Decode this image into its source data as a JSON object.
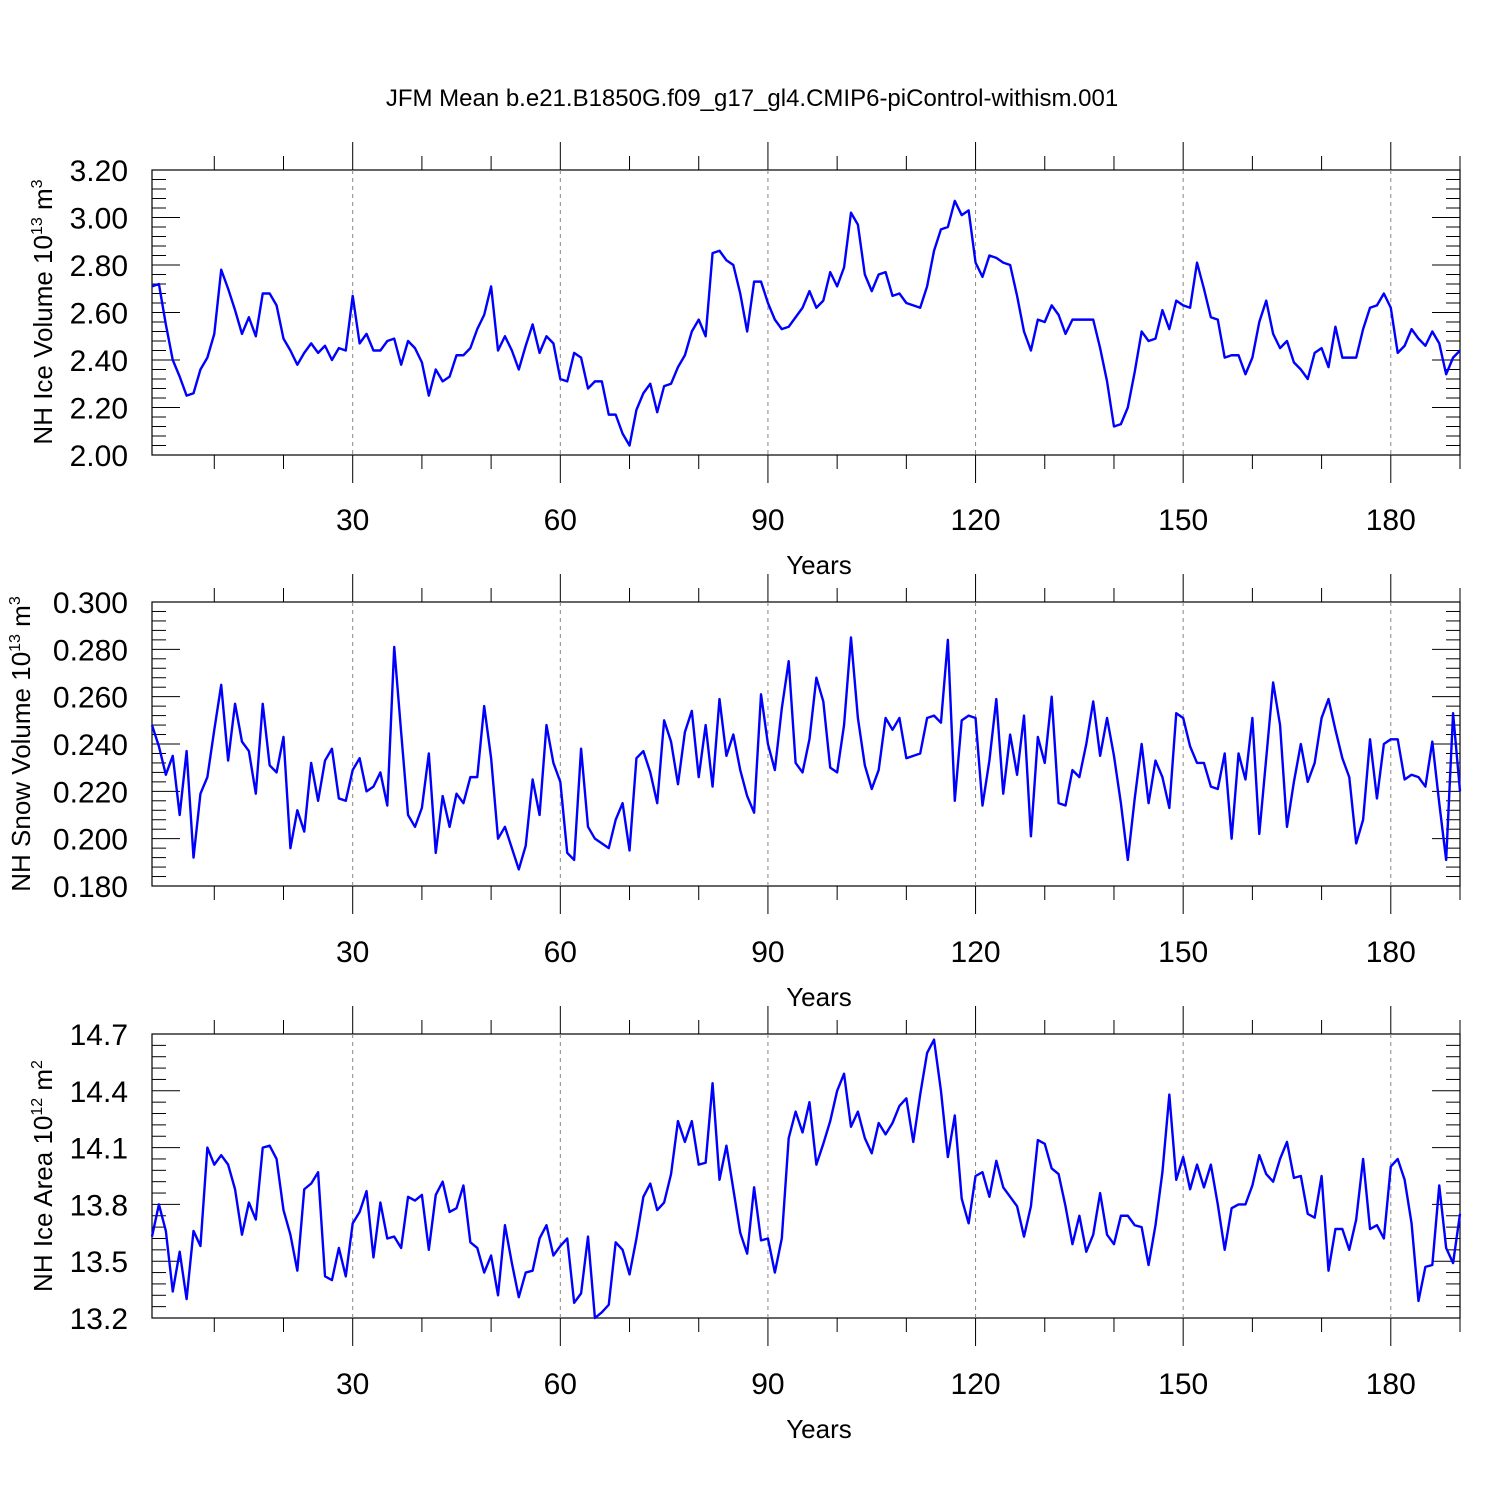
{
  "title": "JFM Mean b.e21.B1850G.f09_g17_gl4.CMIP6-piControl-withism.001",
  "colors": {
    "line": "#0000ff",
    "axis": "#000000",
    "grid": "#888888"
  },
  "chart_data": [
    {
      "type": "line",
      "ylabel_main": "NH Ice Volume 10",
      "ylabel_exp": "13",
      "ylabel_unit": " m",
      "ylabel_unit_exp": "3",
      "xlabel": "Years",
      "xlim": [
        1,
        190
      ],
      "ylim": [
        2.0,
        3.2
      ],
      "yticks": [
        "2.00",
        "2.20",
        "2.40",
        "2.60",
        "2.80",
        "3.00",
        "3.20"
      ],
      "xticks": [
        "30",
        "60",
        "90",
        "120",
        "150",
        "180"
      ],
      "values": [
        2.71,
        2.72,
        2.55,
        2.4,
        2.33,
        2.25,
        2.26,
        2.36,
        2.41,
        2.51,
        2.78,
        2.7,
        2.61,
        2.51,
        2.58,
        2.5,
        2.68,
        2.68,
        2.63,
        2.49,
        2.44,
        2.38,
        2.43,
        2.47,
        2.43,
        2.46,
        2.4,
        2.45,
        2.44,
        2.67,
        2.47,
        2.51,
        2.44,
        2.44,
        2.48,
        2.49,
        2.38,
        2.48,
        2.45,
        2.39,
        2.25,
        2.36,
        2.31,
        2.33,
        2.42,
        2.42,
        2.45,
        2.53,
        2.59,
        2.71,
        2.44,
        2.5,
        2.44,
        2.36,
        2.46,
        2.55,
        2.43,
        2.5,
        2.47,
        2.32,
        2.31,
        2.43,
        2.41,
        2.28,
        2.31,
        2.31,
        2.17,
        2.17,
        2.09,
        2.04,
        2.19,
        2.26,
        2.3,
        2.18,
        2.29,
        2.3,
        2.37,
        2.42,
        2.52,
        2.57,
        2.5,
        2.85,
        2.86,
        2.82,
        2.8,
        2.68,
        2.52,
        2.73,
        2.73,
        2.64,
        2.57,
        2.53,
        2.54,
        2.58,
        2.62,
        2.69,
        2.62,
        2.65,
        2.77,
        2.71,
        2.79,
        3.02,
        2.97,
        2.76,
        2.69,
        2.76,
        2.77,
        2.67,
        2.68,
        2.64,
        2.63,
        2.62,
        2.71,
        2.86,
        2.95,
        2.96,
        3.07,
        3.01,
        3.03,
        2.81,
        2.75,
        2.84,
        2.83,
        2.81,
        2.8,
        2.67,
        2.52,
        2.44,
        2.57,
        2.56,
        2.63,
        2.59,
        2.51,
        2.57,
        2.57,
        2.57,
        2.57,
        2.45,
        2.31,
        2.12,
        2.13,
        2.2,
        2.35,
        2.52,
        2.48,
        2.49,
        2.61,
        2.53,
        2.65,
        2.63,
        2.62,
        2.81,
        2.7,
        2.58,
        2.57,
        2.41,
        2.42,
        2.42,
        2.34,
        2.41,
        2.56,
        2.65,
        2.51,
        2.45,
        2.48,
        2.39,
        2.36,
        2.32,
        2.43,
        2.45,
        2.37,
        2.54,
        2.41,
        2.41,
        2.41,
        2.53,
        2.62,
        2.63,
        2.68,
        2.62,
        2.43,
        2.46,
        2.53,
        2.49,
        2.46,
        2.52,
        2.47,
        2.34,
        2.41,
        2.44
      ]
    },
    {
      "type": "line",
      "ylabel_main": "NH Snow Volume 10",
      "ylabel_exp": "13",
      "ylabel_unit": " m",
      "ylabel_unit_exp": "3",
      "xlabel": "Years",
      "xlim": [
        1,
        190
      ],
      "ylim": [
        0.18,
        0.3
      ],
      "yticks": [
        "0.180",
        "0.200",
        "0.220",
        "0.240",
        "0.260",
        "0.280",
        "0.300"
      ],
      "xticks": [
        "30",
        "60",
        "90",
        "120",
        "150",
        "180"
      ],
      "values": [
        0.248,
        0.239,
        0.227,
        0.235,
        0.21,
        0.237,
        0.192,
        0.219,
        0.226,
        0.246,
        0.265,
        0.233,
        0.257,
        0.241,
        0.237,
        0.219,
        0.257,
        0.231,
        0.228,
        0.243,
        0.196,
        0.212,
        0.203,
        0.232,
        0.216,
        0.233,
        0.238,
        0.217,
        0.216,
        0.229,
        0.234,
        0.22,
        0.222,
        0.228,
        0.214,
        0.281,
        0.245,
        0.21,
        0.205,
        0.213,
        0.236,
        0.194,
        0.218,
        0.205,
        0.219,
        0.215,
        0.226,
        0.226,
        0.256,
        0.234,
        0.2,
        0.205,
        0.196,
        0.187,
        0.197,
        0.225,
        0.21,
        0.248,
        0.232,
        0.224,
        0.194,
        0.191,
        0.238,
        0.205,
        0.2,
        0.198,
        0.196,
        0.208,
        0.215,
        0.195,
        0.234,
        0.237,
        0.228,
        0.215,
        0.25,
        0.241,
        0.223,
        0.245,
        0.254,
        0.226,
        0.248,
        0.222,
        0.259,
        0.235,
        0.244,
        0.229,
        0.218,
        0.211,
        0.261,
        0.24,
        0.229,
        0.255,
        0.275,
        0.232,
        0.228,
        0.242,
        0.268,
        0.258,
        0.23,
        0.228,
        0.248,
        0.285,
        0.251,
        0.231,
        0.221,
        0.229,
        0.251,
        0.246,
        0.251,
        0.234,
        0.235,
        0.236,
        0.251,
        0.252,
        0.249,
        0.284,
        0.216,
        0.25,
        0.252,
        0.251,
        0.214,
        0.233,
        0.259,
        0.219,
        0.244,
        0.227,
        0.252,
        0.201,
        0.243,
        0.232,
        0.26,
        0.215,
        0.214,
        0.229,
        0.226,
        0.24,
        0.258,
        0.235,
        0.251,
        0.235,
        0.215,
        0.191,
        0.217,
        0.24,
        0.215,
        0.233,
        0.226,
        0.213,
        0.253,
        0.251,
        0.239,
        0.232,
        0.232,
        0.222,
        0.221,
        0.236,
        0.2,
        0.236,
        0.225,
        0.251,
        0.202,
        0.234,
        0.266,
        0.248,
        0.205,
        0.224,
        0.24,
        0.224,
        0.232,
        0.251,
        0.259,
        0.246,
        0.234,
        0.226,
        0.198,
        0.208,
        0.242,
        0.217,
        0.24,
        0.242,
        0.242,
        0.225,
        0.227,
        0.226,
        0.222,
        0.241,
        0.215,
        0.191,
        0.253,
        0.22
      ]
    },
    {
      "type": "line",
      "ylabel_main": "NH Ice Area 10",
      "ylabel_exp": "12",
      "ylabel_unit": " m",
      "ylabel_unit_exp": "2",
      "xlabel": "Years",
      "xlim": [
        1,
        190
      ],
      "ylim": [
        13.2,
        14.7
      ],
      "yticks": [
        "13.2",
        "13.5",
        "13.8",
        "14.1",
        "14.4",
        "14.7"
      ],
      "xticks": [
        "30",
        "60",
        "90",
        "120",
        "150",
        "180"
      ],
      "values": [
        13.63,
        13.8,
        13.66,
        13.34,
        13.55,
        13.3,
        13.66,
        13.58,
        14.1,
        14.01,
        14.06,
        14.01,
        13.88,
        13.64,
        13.81,
        13.72,
        14.1,
        14.11,
        14.04,
        13.77,
        13.64,
        13.45,
        13.88,
        13.91,
        13.97,
        13.42,
        13.4,
        13.57,
        13.42,
        13.7,
        13.76,
        13.87,
        13.52,
        13.81,
        13.62,
        13.63,
        13.57,
        13.84,
        13.82,
        13.85,
        13.56,
        13.85,
        13.92,
        13.76,
        13.78,
        13.9,
        13.6,
        13.57,
        13.44,
        13.53,
        13.32,
        13.69,
        13.49,
        13.31,
        13.44,
        13.45,
        13.62,
        13.69,
        13.53,
        13.58,
        13.62,
        13.28,
        13.33,
        13.63,
        13.2,
        13.23,
        13.27,
        13.6,
        13.56,
        13.43,
        13.62,
        13.84,
        13.91,
        13.77,
        13.81,
        13.96,
        14.24,
        14.13,
        14.24,
        14.01,
        14.02,
        14.44,
        13.93,
        14.11,
        13.88,
        13.65,
        13.54,
        13.89,
        13.61,
        13.62,
        13.44,
        13.62,
        14.15,
        14.29,
        14.18,
        14.34,
        14.01,
        14.12,
        14.24,
        14.4,
        14.49,
        14.21,
        14.29,
        14.15,
        14.07,
        14.23,
        14.17,
        14.23,
        14.32,
        14.36,
        14.13,
        14.38,
        14.6,
        14.67,
        14.4,
        14.05,
        14.27,
        13.83,
        13.7,
        13.95,
        13.97,
        13.84,
        14.03,
        13.89,
        13.84,
        13.79,
        13.63,
        13.79,
        14.14,
        14.12,
        13.99,
        13.96,
        13.79,
        13.59,
        13.74,
        13.55,
        13.64,
        13.86,
        13.64,
        13.59,
        13.74,
        13.74,
        13.69,
        13.68,
        13.48,
        13.69,
        13.97,
        14.38,
        13.93,
        14.05,
        13.88,
        14.01,
        13.89,
        14.01,
        13.8,
        13.56,
        13.78,
        13.8,
        13.8,
        13.9,
        14.06,
        13.96,
        13.92,
        14.04,
        14.13,
        13.94,
        13.95,
        13.75,
        13.73,
        13.95,
        13.45,
        13.67,
        13.67,
        13.56,
        13.72,
        14.04,
        13.67,
        13.69,
        13.62,
        14.0,
        14.04,
        13.93,
        13.7,
        13.29,
        13.47,
        13.48,
        13.9,
        13.57,
        13.49,
        13.75
      ]
    }
  ]
}
